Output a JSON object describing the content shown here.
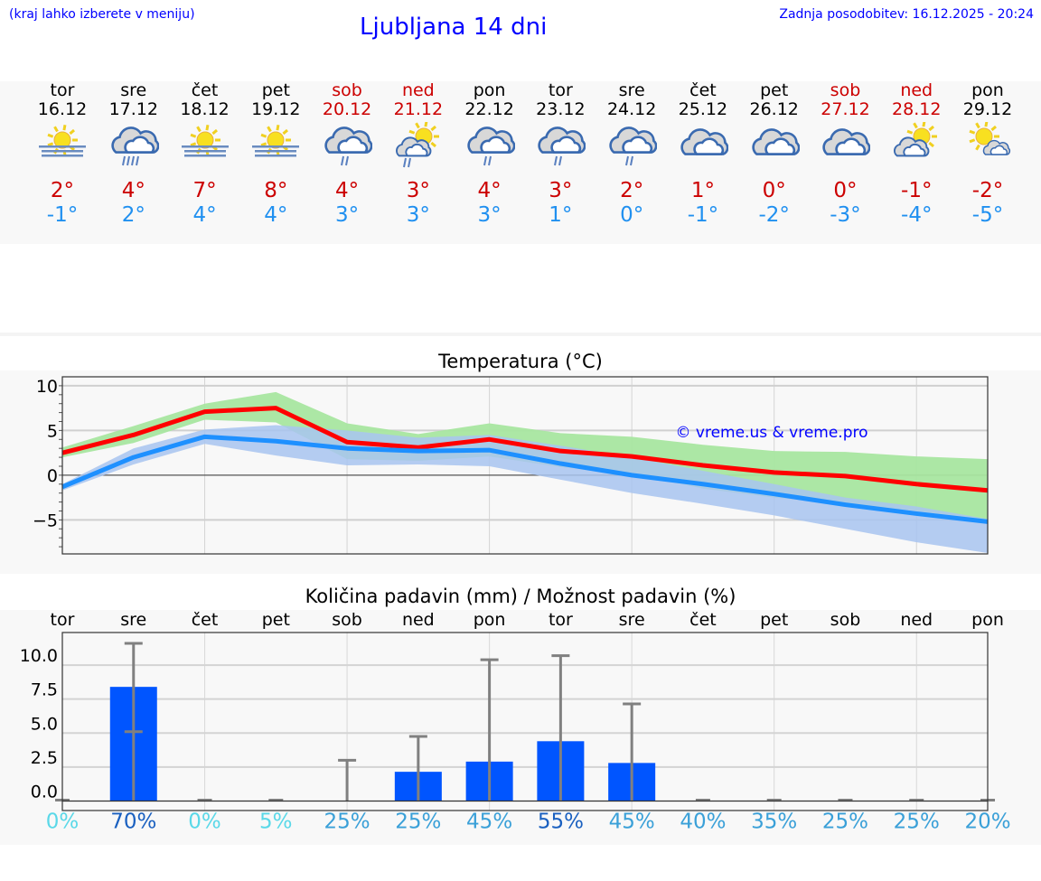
{
  "header": {
    "menu_hint": "(kraj lahko izberete v meniju)",
    "title": "Ljubljana 14 dni",
    "updated": "Zadnja posodobitev: 16.12.2025 - 20:24"
  },
  "days": [
    {
      "name": "tor",
      "date": "16.12",
      "weekend": false,
      "icon": "fog-sun-icon",
      "hi": "2°",
      "lo": "-1°"
    },
    {
      "name": "sre",
      "date": "17.12",
      "weekend": false,
      "icon": "heavy-rain-cloud-icon",
      "hi": "4°",
      "lo": "2°"
    },
    {
      "name": "čet",
      "date": "18.12",
      "weekend": false,
      "icon": "fog-sun-icon",
      "hi": "7°",
      "lo": "4°"
    },
    {
      "name": "pet",
      "date": "19.12",
      "weekend": false,
      "icon": "fog-sun-icon",
      "hi": "8°",
      "lo": "4°"
    },
    {
      "name": "sob",
      "date": "20.12",
      "weekend": true,
      "icon": "rain-cloud-icon",
      "hi": "4°",
      "lo": "3°"
    },
    {
      "name": "ned",
      "date": "21.12",
      "weekend": true,
      "icon": "sun-cloud-rain-icon",
      "hi": "3°",
      "lo": "3°"
    },
    {
      "name": "pon",
      "date": "22.12",
      "weekend": false,
      "icon": "rain-cloud-icon",
      "hi": "4°",
      "lo": "3°"
    },
    {
      "name": "tor",
      "date": "23.12",
      "weekend": false,
      "icon": "rain-cloud-icon",
      "hi": "3°",
      "lo": "1°"
    },
    {
      "name": "sre",
      "date": "24.12",
      "weekend": false,
      "icon": "rain-cloud-icon",
      "hi": "2°",
      "lo": "0°"
    },
    {
      "name": "čet",
      "date": "25.12",
      "weekend": false,
      "icon": "cloudy-icon",
      "hi": "1°",
      "lo": "-1°"
    },
    {
      "name": "pet",
      "date": "26.12",
      "weekend": false,
      "icon": "cloudy-icon",
      "hi": "0°",
      "lo": "-2°"
    },
    {
      "name": "sob",
      "date": "27.12",
      "weekend": true,
      "icon": "cloudy-icon",
      "hi": "0°",
      "lo": "-3°"
    },
    {
      "name": "ned",
      "date": "28.12",
      "weekend": true,
      "icon": "sun-cloud-icon",
      "hi": "-1°",
      "lo": "-4°"
    },
    {
      "name": "pon",
      "date": "29.12",
      "weekend": false,
      "icon": "sun-small-cloud-icon",
      "hi": "-2°",
      "lo": "-5°"
    }
  ],
  "chart_data": [
    {
      "type": "line",
      "title": "Temperatura (°C)",
      "watermark": "© vreme.us & vreme.pro",
      "ylim": [
        -8.8,
        11
      ],
      "yticks": [
        10,
        5,
        0,
        -5
      ],
      "ytick_labels": [
        "10",
        "5",
        "0",
        "−5"
      ],
      "grid": true,
      "series": [
        {
          "color": "#ff0000",
          "values": [
            2.5,
            4.5,
            7.1,
            7.5,
            3.7,
            3.1,
            4.0,
            2.7,
            2.1,
            1.1,
            0.3,
            -0.1,
            -1.0,
            -1.7
          ],
          "band_color": "#a8e6a0",
          "band_hi": [
            3.1,
            5.5,
            8.0,
            9.3,
            5.8,
            4.6,
            5.8,
            4.7,
            4.3,
            3.4,
            2.7,
            2.6,
            2.1,
            1.8
          ],
          "band_lo": [
            2.0,
            3.6,
            6.2,
            5.9,
            1.8,
            1.6,
            2.1,
            0.9,
            0.2,
            -1.5,
            -2.5,
            -3.2,
            -4.0,
            -5.0
          ]
        },
        {
          "color": "#1e90ff",
          "values": [
            -1.3,
            2.0,
            4.3,
            3.8,
            3.0,
            2.7,
            2.8,
            1.3,
            0.0,
            -1.0,
            -2.1,
            -3.3,
            -4.3,
            -5.2
          ],
          "band_color": "#a8c4f0",
          "band_hi": [
            -1.0,
            3.0,
            5.1,
            5.6,
            5.0,
            4.2,
            4.5,
            3.3,
            2.0,
            0.5,
            -1.0,
            -2.5,
            -3.5,
            -4.9
          ],
          "band_lo": [
            -1.7,
            1.2,
            3.5,
            2.2,
            1.1,
            1.2,
            1.0,
            -0.5,
            -2.0,
            -3.2,
            -4.5,
            -6.0,
            -7.5,
            -8.7
          ]
        }
      ]
    },
    {
      "type": "bar",
      "title": "Količina padavin (mm) / Možnost padavin (%)",
      "categories": [
        "tor",
        "sre",
        "čet",
        "pet",
        "sob",
        "ned",
        "pon",
        "tor",
        "sre",
        "čet",
        "pet",
        "sob",
        "ned",
        "pon"
      ],
      "values": [
        0,
        8.4,
        0,
        0,
        0,
        2.15,
        2.9,
        4.4,
        2.8,
        0,
        0,
        0,
        0,
        0
      ],
      "err_hi": [
        0,
        11.6,
        0,
        0,
        3.0,
        4.75,
        10.4,
        10.7,
        7.15,
        0,
        0,
        0,
        0,
        0
      ],
      "err_lo": [
        0,
        5.1,
        0,
        0,
        0,
        0,
        0,
        0,
        0,
        0,
        0,
        0,
        0,
        0
      ],
      "probability": [
        "0%",
        "70%",
        "0%",
        "5%",
        "25%",
        "25%",
        "45%",
        "55%",
        "45%",
        "40%",
        "35%",
        "25%",
        "25%",
        "20%"
      ],
      "bar_color": "#0055ff",
      "ylim": [
        -0.7,
        12.4
      ],
      "yticks": [
        0,
        2.5,
        5,
        7.5,
        10
      ],
      "ytick_labels": [
        "0.0",
        "2.5",
        "5.0",
        "7.5",
        "10.0"
      ],
      "grid": true
    }
  ]
}
